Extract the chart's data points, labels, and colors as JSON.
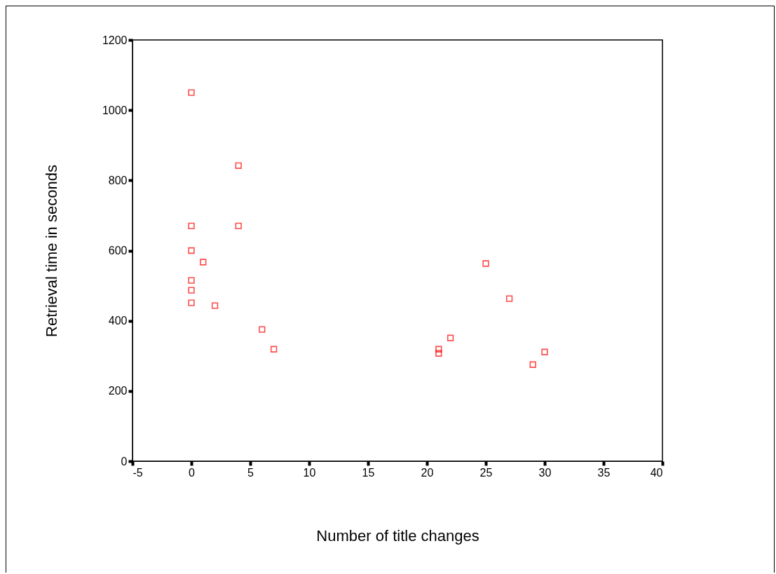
{
  "chart_data": {
    "type": "scatter",
    "xlabel": "Number of title changes",
    "ylabel": "Retrieval time in seconds",
    "xlim": [
      -5,
      40
    ],
    "xticks": [
      -5,
      0,
      5,
      10,
      15,
      20,
      25,
      30,
      35,
      40
    ],
    "ylim": [
      0,
      1200
    ],
    "yticks": [
      0,
      200,
      400,
      600,
      800,
      1000,
      1200
    ],
    "grid": false,
    "marker": "square",
    "series": [
      {
        "color": "#ff0000",
        "x": [
          0,
          4,
          0,
          4,
          0,
          1,
          0,
          0,
          0,
          2,
          6,
          7,
          21,
          21,
          22,
          25,
          27,
          29,
          30
        ],
        "values": [
          1050,
          842,
          670,
          670,
          600,
          567,
          515,
          487,
          451,
          443,
          375,
          319,
          319,
          307,
          351,
          563,
          463,
          275,
          311
        ]
      }
    ]
  }
}
